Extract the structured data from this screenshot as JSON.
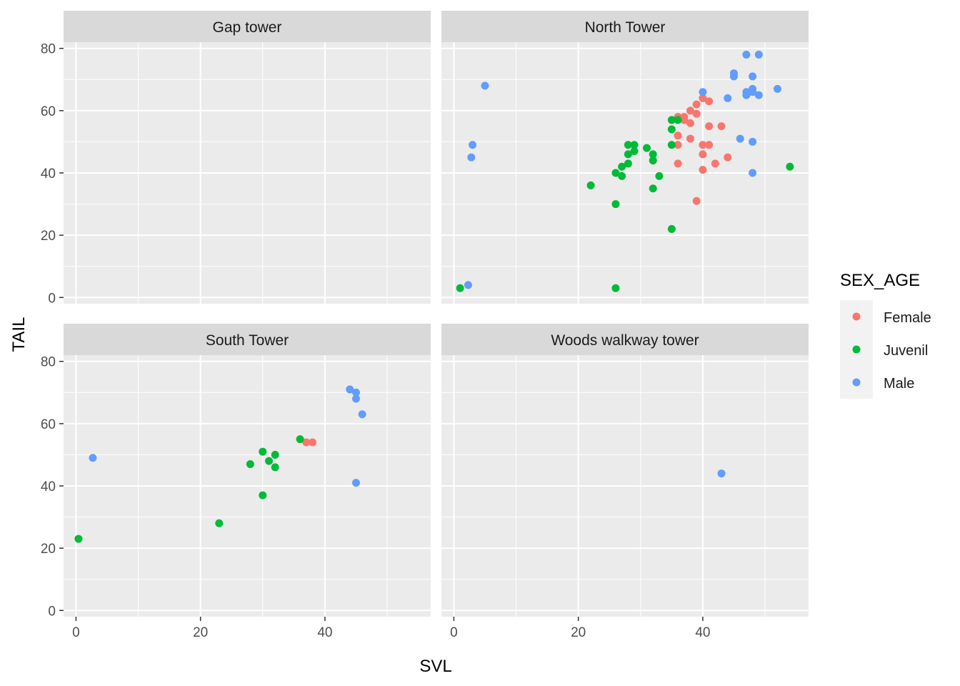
{
  "chart_data": {
    "type": "scatter",
    "facet_layout": "2x2",
    "xlabel": "SVL",
    "ylabel": "TAIL",
    "xlim": [
      -2,
      57
    ],
    "ylim": [
      -2,
      82
    ],
    "x_ticks": [
      0,
      20,
      40
    ],
    "y_ticks": [
      0,
      20,
      40,
      60,
      80
    ],
    "grid": true,
    "legend": {
      "title": "SEX_AGE",
      "placement": "right",
      "entries": [
        {
          "name": "Female",
          "color": "#F8766D"
        },
        {
          "name": "Juvenil",
          "color": "#00BA38"
        },
        {
          "name": "Male",
          "color": "#619CFF"
        }
      ]
    },
    "panels": [
      {
        "title": "Gap tower",
        "series": [
          {
            "name": "Female",
            "points": []
          },
          {
            "name": "Juvenil",
            "points": []
          },
          {
            "name": "Male",
            "points": []
          }
        ]
      },
      {
        "title": "North Tower",
        "series": [
          {
            "name": "Female",
            "points": [
              [
                36,
                58
              ],
              [
                37,
                57
              ],
              [
                37,
                58
              ],
              [
                38,
                60
              ],
              [
                38,
                56
              ],
              [
                39,
                62
              ],
              [
                39,
                59
              ],
              [
                40,
                64
              ],
              [
                41,
                63
              ],
              [
                36,
                52
              ],
              [
                36,
                49
              ],
              [
                38,
                51
              ],
              [
                40,
                49
              ],
              [
                41,
                49
              ],
              [
                41,
                55
              ],
              [
                43,
                55
              ],
              [
                40,
                46
              ],
              [
                42,
                43
              ],
              [
                44,
                45
              ],
              [
                36,
                43
              ],
              [
                40,
                41
              ],
              [
                39,
                31
              ]
            ]
          },
          {
            "name": "Juvenil",
            "points": [
              [
                35,
                57
              ],
              [
                36,
                57
              ],
              [
                35,
                54
              ],
              [
                35,
                49
              ],
              [
                28,
                49
              ],
              [
                29,
                49
              ],
              [
                31,
                48
              ],
              [
                28,
                46
              ],
              [
                29,
                47
              ],
              [
                32,
                46
              ],
              [
                32,
                44
              ],
              [
                28,
                43
              ],
              [
                27,
                42
              ],
              [
                26,
                40
              ],
              [
                27,
                39
              ],
              [
                33,
                39
              ],
              [
                22,
                36
              ],
              [
                32,
                35
              ],
              [
                26,
                30
              ],
              [
                35,
                22
              ],
              [
                54,
                42
              ],
              [
                1,
                3
              ],
              [
                26,
                3
              ]
            ]
          },
          {
            "name": "Male",
            "points": [
              [
                47,
                78
              ],
              [
                49,
                78
              ],
              [
                45,
                72
              ],
              [
                45,
                71
              ],
              [
                48,
                71
              ],
              [
                40,
                66
              ],
              [
                47,
                66
              ],
              [
                48,
                67
              ],
              [
                47,
                65
              ],
              [
                48,
                66
              ],
              [
                49,
                65
              ],
              [
                52,
                67
              ],
              [
                44,
                64
              ],
              [
                46,
                51
              ],
              [
                48,
                50
              ],
              [
                48,
                40
              ],
              [
                5,
                68
              ],
              [
                3,
                49
              ],
              [
                2.8,
                45
              ],
              [
                2.3,
                4
              ]
            ]
          }
        ]
      },
      {
        "title": "South Tower",
        "series": [
          {
            "name": "Female",
            "points": [
              [
                37,
                54
              ],
              [
                38,
                54
              ]
            ]
          },
          {
            "name": "Juvenil",
            "points": [
              [
                36,
                55
              ],
              [
                30,
                51
              ],
              [
                32,
                50
              ],
              [
                31,
                48
              ],
              [
                28,
                47
              ],
              [
                32,
                46
              ],
              [
                30,
                37
              ],
              [
                23,
                28
              ],
              [
                0.4,
                23
              ]
            ]
          },
          {
            "name": "Male",
            "points": [
              [
                44,
                71
              ],
              [
                45,
                70
              ],
              [
                45,
                68
              ],
              [
                46,
                63
              ],
              [
                45,
                41
              ],
              [
                2.7,
                49
              ]
            ]
          }
        ]
      },
      {
        "title": "Woods walkway tower",
        "series": [
          {
            "name": "Female",
            "points": []
          },
          {
            "name": "Juvenil",
            "points": []
          },
          {
            "name": "Male",
            "points": [
              [
                43,
                44
              ]
            ]
          }
        ]
      }
    ]
  }
}
